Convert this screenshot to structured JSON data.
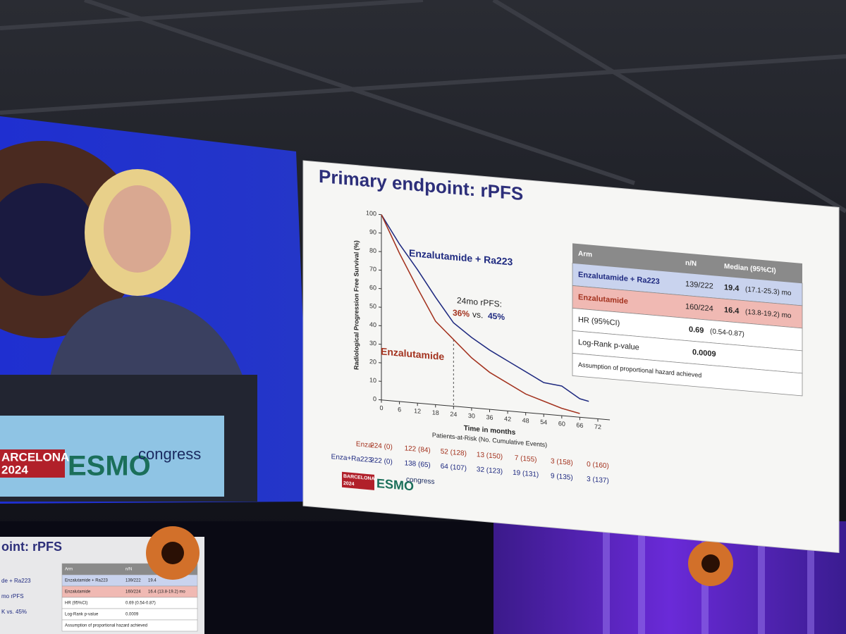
{
  "stage": {
    "left_logo": {
      "city": "ARCELONA",
      "year": "2024",
      "brand": "ESMO",
      "suffix": "congress"
    },
    "monitor": {
      "title": "oint: rPFS",
      "texts": [
        "de + Ra223",
        "mo rPFS",
        "K vs. 45%"
      ],
      "table": [
        [
          "Arm",
          "n/N"
        ],
        [
          "Enzalutamide + Ra223",
          "139/222",
          "19.4"
        ],
        [
          "Enzalutamide",
          "160/224",
          "16.4 (13.8-19.2) mo"
        ],
        [
          "HR (95%CI)",
          "0.69 (0.54-0.87)"
        ],
        [
          "Log-Rank p-value",
          "0.0009"
        ],
        [
          "Assumption of proportional hazard achieved"
        ]
      ]
    }
  },
  "slide": {
    "title": "Primary endpoint: rPFS",
    "logo": {
      "city": "BARCELONA",
      "year": "2024",
      "brand": "ESMO",
      "suffix": "congress"
    },
    "summary_table": {
      "header": [
        "Arm",
        "n/N",
        "Median (95%CI)"
      ],
      "rows": [
        [
          "Enzalutamide + Ra223",
          "139/222",
          "19.4",
          "(17.1-25.3) mo"
        ],
        [
          "Enzalutamide",
          "160/224",
          "16.4",
          "(13.8-19.2) mo"
        ],
        [
          "HR (95%CI)",
          "0.69",
          "(0.54-0.87)"
        ],
        [
          "Log-Rank p-value",
          "0.0009"
        ],
        [
          "Assumption of proportional hazard achieved"
        ]
      ]
    },
    "risk_table": {
      "title": "Patients-at-Risk (No. Cumulative Events)",
      "rows": [
        {
          "label": "Enza-",
          "cells": [
            "224 (0)",
            "122 (84)",
            "52 (128)",
            "13 (150)",
            "7 (155)",
            "3 (158)",
            "0 (160)"
          ]
        },
        {
          "label": "Enza+Ra223-",
          "cells": [
            "222 (0)",
            "138 (65)",
            "64 (107)",
            "32 (123)",
            "19 (131)",
            "9 (135)",
            "3 (137)"
          ]
        }
      ]
    }
  },
  "chart_data": {
    "type": "line",
    "xlabel": "Time in months",
    "ylabel": "Radiological Progression Free Survival (%)",
    "x": [
      0,
      6,
      12,
      18,
      24,
      30,
      36,
      42,
      48,
      54,
      60,
      66,
      69
    ],
    "series": [
      {
        "name": "Enzalutamide + Ra223",
        "color": "#1f2a80",
        "values": [
          100,
          85,
          72,
          58,
          45,
          38,
          32,
          27,
          22,
          17,
          16,
          10,
          9
        ]
      },
      {
        "name": "Enzalutamide",
        "color": "#a3321e",
        "values": [
          100,
          80,
          62,
          45,
          36,
          27,
          20,
          15,
          10,
          7,
          4,
          2,
          null
        ]
      }
    ],
    "xlim": [
      0,
      76
    ],
    "ylim": [
      0,
      100
    ],
    "xticks": [
      0,
      6,
      12,
      18,
      24,
      30,
      36,
      42,
      48,
      54,
      60,
      66,
      72
    ],
    "yticks": [
      0,
      10,
      20,
      30,
      40,
      50,
      60,
      70,
      80,
      90,
      100
    ],
    "annotation": {
      "label": "24mo rPFS:",
      "parts": [
        "36%",
        "vs.",
        "45%"
      ]
    }
  }
}
